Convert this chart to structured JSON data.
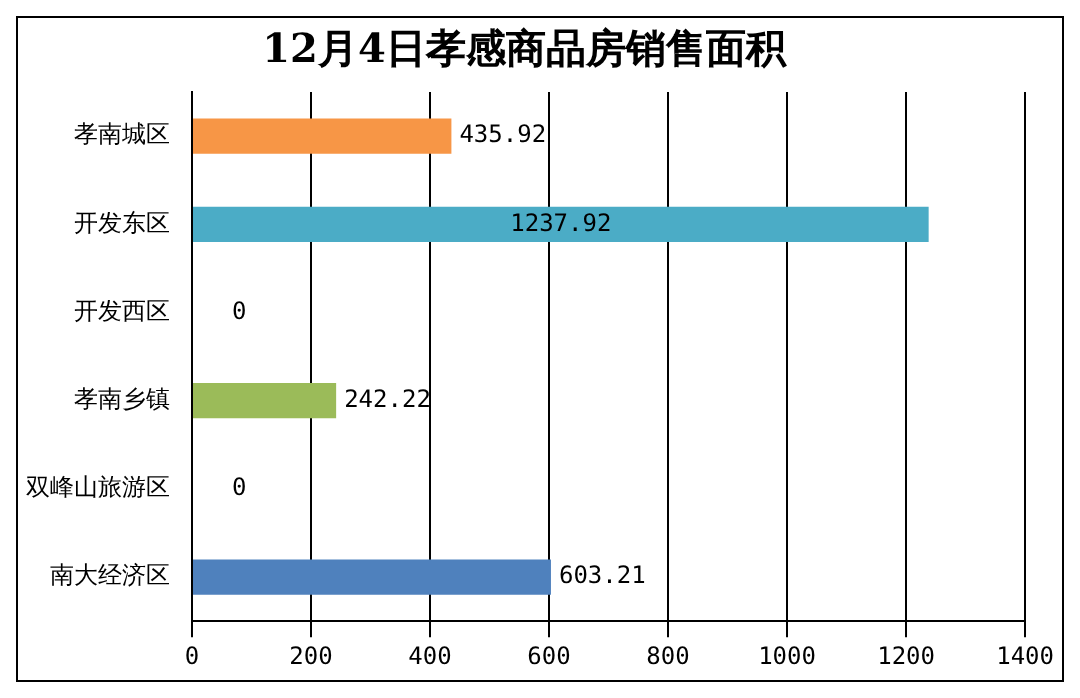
{
  "chart_data": {
    "type": "bar",
    "orientation": "horizontal",
    "title": "12月4日孝感商品房销售面积",
    "categories": [
      "孝南城区",
      "开发东区",
      "开发西区",
      "孝南乡镇",
      "双峰山旅游区",
      "南大经济区"
    ],
    "values": [
      435.92,
      1237.92,
      0,
      242.22,
      0,
      603.21
    ],
    "colors": [
      "#f79646",
      "#4bacc6",
      "#9bbb59",
      "#9bbb59",
      "#4f81bd",
      "#4f81bd"
    ],
    "xlim": [
      0,
      1400
    ],
    "xticks": [
      0,
      200,
      400,
      600,
      800,
      1000,
      1200,
      1400
    ],
    "grid": "x",
    "legend": false,
    "data_labels": true
  }
}
